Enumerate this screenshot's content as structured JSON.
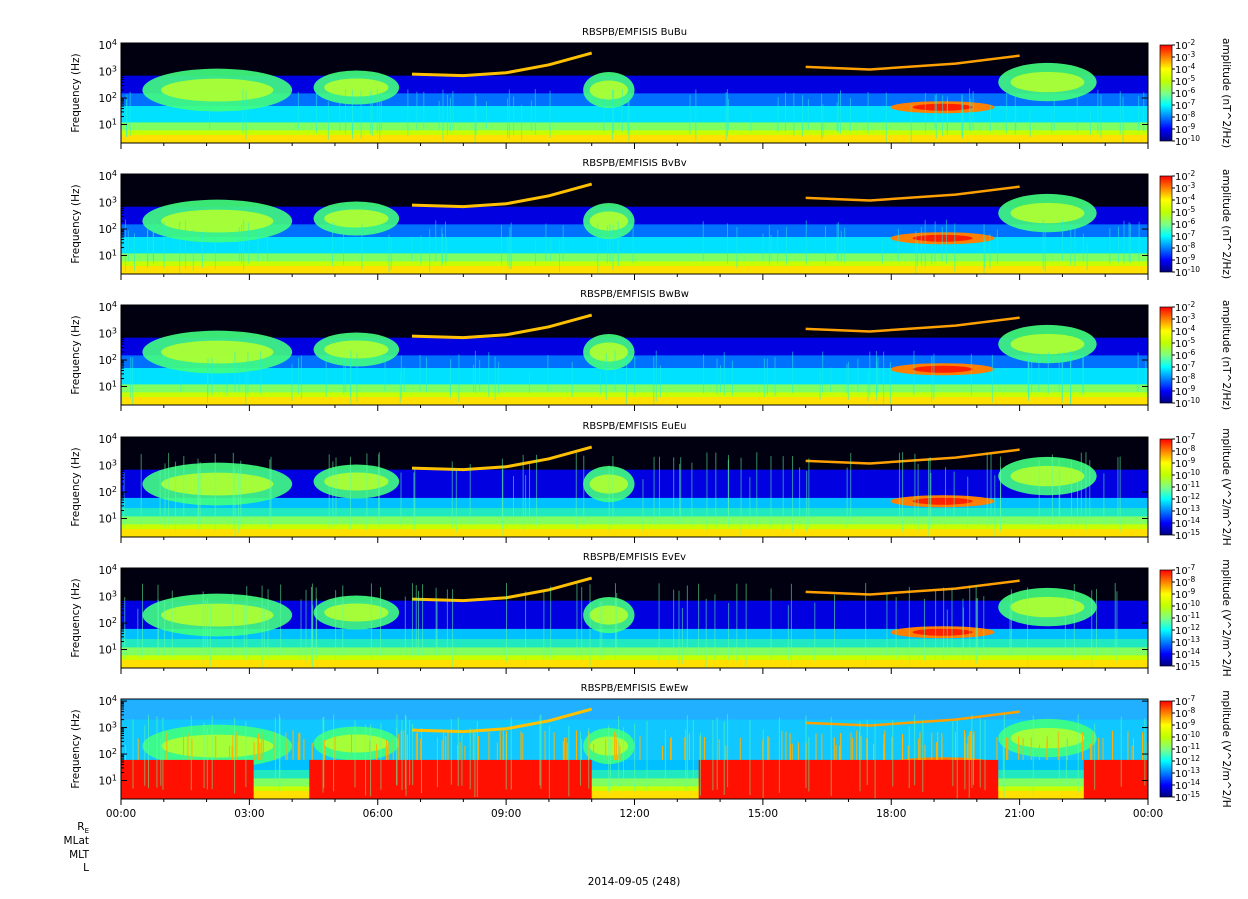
{
  "figure": {
    "date_label": "2014-09-05 (248)",
    "ephemeris_labels": [
      "R",
      "MLat",
      "MLT",
      "L"
    ],
    "ephemeris_re_subscript": "E",
    "colormap": [
      "#000080",
      "#0000ff",
      "#0080ff",
      "#00ffff",
      "#80ff80",
      "#c0ff00",
      "#ffff00",
      "#ff8000",
      "#ff0000"
    ]
  },
  "chart_data": [
    {
      "type": "heatmap",
      "title": "RBSPB/EMFISIS  BuBu",
      "ylabel": "Frequency (Hz)",
      "yscale": "log",
      "ylim": [
        2,
        12000
      ],
      "yticks": [
        {
          "base": "10",
          "exp": "1"
        },
        {
          "base": "10",
          "exp": "2"
        },
        {
          "base": "10",
          "exp": "3"
        },
        {
          "base": "10",
          "exp": "4"
        }
      ],
      "colorbar_label": "amplitude (nT^2/Hz)",
      "colorbar_scale": "log",
      "colorbar_ticks": [
        {
          "base": "10",
          "exp": "-2"
        },
        {
          "base": "10",
          "exp": "-3"
        },
        {
          "base": "10",
          "exp": "-4"
        },
        {
          "base": "10",
          "exp": "-5"
        },
        {
          "base": "10",
          "exp": "-6"
        },
        {
          "base": "10",
          "exp": "-7"
        },
        {
          "base": "10",
          "exp": "-8"
        },
        {
          "base": "10",
          "exp": "-9"
        },
        {
          "base": "10",
          "exp": "-10"
        }
      ],
      "xlim": [
        "00:00",
        "24:00"
      ]
    },
    {
      "type": "heatmap",
      "title": "RBSPB/EMFISIS  BvBv",
      "ylabel": "Frequency (Hz)",
      "yscale": "log",
      "ylim": [
        2,
        12000
      ],
      "yticks": [
        {
          "base": "10",
          "exp": "1"
        },
        {
          "base": "10",
          "exp": "2"
        },
        {
          "base": "10",
          "exp": "3"
        },
        {
          "base": "10",
          "exp": "4"
        }
      ],
      "colorbar_label": "amplitude (nT^2/Hz)",
      "colorbar_scale": "log",
      "colorbar_ticks": [
        {
          "base": "10",
          "exp": "-2"
        },
        {
          "base": "10",
          "exp": "-3"
        },
        {
          "base": "10",
          "exp": "-4"
        },
        {
          "base": "10",
          "exp": "-5"
        },
        {
          "base": "10",
          "exp": "-6"
        },
        {
          "base": "10",
          "exp": "-7"
        },
        {
          "base": "10",
          "exp": "-8"
        },
        {
          "base": "10",
          "exp": "-9"
        },
        {
          "base": "10",
          "exp": "-10"
        }
      ],
      "xlim": [
        "00:00",
        "24:00"
      ]
    },
    {
      "type": "heatmap",
      "title": "RBSPB/EMFISIS  BwBw",
      "ylabel": "Frequency (Hz)",
      "yscale": "log",
      "ylim": [
        2,
        12000
      ],
      "yticks": [
        {
          "base": "10",
          "exp": "1"
        },
        {
          "base": "10",
          "exp": "2"
        },
        {
          "base": "10",
          "exp": "3"
        },
        {
          "base": "10",
          "exp": "4"
        }
      ],
      "colorbar_label": "amplitude (nT^2/Hz)",
      "colorbar_scale": "log",
      "colorbar_ticks": [
        {
          "base": "10",
          "exp": "-2"
        },
        {
          "base": "10",
          "exp": "-3"
        },
        {
          "base": "10",
          "exp": "-4"
        },
        {
          "base": "10",
          "exp": "-5"
        },
        {
          "base": "10",
          "exp": "-6"
        },
        {
          "base": "10",
          "exp": "-7"
        },
        {
          "base": "10",
          "exp": "-8"
        },
        {
          "base": "10",
          "exp": "-9"
        },
        {
          "base": "10",
          "exp": "-10"
        }
      ],
      "xlim": [
        "00:00",
        "24:00"
      ]
    },
    {
      "type": "heatmap",
      "title": "RBSPB/EMFISIS  EuEu",
      "ylabel": "Frequency (Hz)",
      "yscale": "log",
      "ylim": [
        2,
        12000
      ],
      "yticks": [
        {
          "base": "10",
          "exp": "1"
        },
        {
          "base": "10",
          "exp": "2"
        },
        {
          "base": "10",
          "exp": "3"
        },
        {
          "base": "10",
          "exp": "4"
        }
      ],
      "colorbar_label": "mplitude (V^2/m^2/H",
      "colorbar_scale": "log",
      "colorbar_ticks": [
        {
          "base": "10",
          "exp": "-7"
        },
        {
          "base": "10",
          "exp": "-8"
        },
        {
          "base": "10",
          "exp": "-9"
        },
        {
          "base": "10",
          "exp": "-10"
        },
        {
          "base": "10",
          "exp": "-11"
        },
        {
          "base": "10",
          "exp": "-12"
        },
        {
          "base": "10",
          "exp": "-13"
        },
        {
          "base": "10",
          "exp": "-14"
        },
        {
          "base": "10",
          "exp": "-15"
        }
      ],
      "xlim": [
        "00:00",
        "24:00"
      ]
    },
    {
      "type": "heatmap",
      "title": "RBSPB/EMFISIS  EvEv",
      "ylabel": "Frequency (Hz)",
      "yscale": "log",
      "ylim": [
        2,
        12000
      ],
      "yticks": [
        {
          "base": "10",
          "exp": "1"
        },
        {
          "base": "10",
          "exp": "2"
        },
        {
          "base": "10",
          "exp": "3"
        },
        {
          "base": "10",
          "exp": "4"
        }
      ],
      "colorbar_label": "mplitude (V^2/m^2/H",
      "colorbar_scale": "log",
      "colorbar_ticks": [
        {
          "base": "10",
          "exp": "-7"
        },
        {
          "base": "10",
          "exp": "-8"
        },
        {
          "base": "10",
          "exp": "-9"
        },
        {
          "base": "10",
          "exp": "-10"
        },
        {
          "base": "10",
          "exp": "-11"
        },
        {
          "base": "10",
          "exp": "-12"
        },
        {
          "base": "10",
          "exp": "-13"
        },
        {
          "base": "10",
          "exp": "-14"
        },
        {
          "base": "10",
          "exp": "-15"
        }
      ],
      "xlim": [
        "00:00",
        "24:00"
      ]
    },
    {
      "type": "heatmap",
      "title": "RBSPB/EMFISIS  EwEw",
      "ylabel": "Frequency (Hz)",
      "yscale": "log",
      "ylim": [
        2,
        12000
      ],
      "yticks": [
        {
          "base": "10",
          "exp": "1"
        },
        {
          "base": "10",
          "exp": "2"
        },
        {
          "base": "10",
          "exp": "3"
        },
        {
          "base": "10",
          "exp": "4"
        }
      ],
      "colorbar_label": "mplitude (V^2/m^2/H",
      "colorbar_scale": "log",
      "colorbar_ticks": [
        {
          "base": "10",
          "exp": "-7"
        },
        {
          "base": "10",
          "exp": "-8"
        },
        {
          "base": "10",
          "exp": "-9"
        },
        {
          "base": "10",
          "exp": "-10"
        },
        {
          "base": "10",
          "exp": "-11"
        },
        {
          "base": "10",
          "exp": "-12"
        },
        {
          "base": "10",
          "exp": "-13"
        },
        {
          "base": "10",
          "exp": "-14"
        },
        {
          "base": "10",
          "exp": "-15"
        }
      ],
      "xlim": [
        "00:00",
        "24:00"
      ],
      "xticks": [
        "00:00",
        "03:00",
        "06:00",
        "09:00",
        "12:00",
        "15:00",
        "18:00",
        "21:00",
        "00:00"
      ]
    }
  ]
}
